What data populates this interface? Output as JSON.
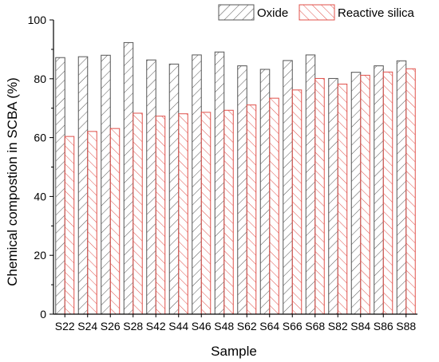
{
  "chart_data": {
    "type": "bar",
    "xlabel": "Sample",
    "ylabel": "Chemical compostion in SCBA (%)",
    "ylim": [
      0,
      100
    ],
    "yticks": [
      0,
      20,
      40,
      60,
      80,
      100
    ],
    "categories": [
      "S22",
      "S24",
      "S26",
      "S28",
      "S42",
      "S44",
      "S46",
      "S48",
      "S62",
      "S64",
      "S66",
      "S68",
      "S82",
      "S84",
      "S86",
      "S88"
    ],
    "series": [
      {
        "name": "Oxide",
        "color": "#555555",
        "hatch": "forward-diagonal",
        "values": [
          87.2,
          87.5,
          88.0,
          92.3,
          86.4,
          85.0,
          88.1,
          89.1,
          84.4,
          83.2,
          86.2,
          88.1,
          80.1,
          82.2,
          84.4,
          86.1
        ]
      },
      {
        "name": "Reactive silica",
        "color": "#e0504a",
        "hatch": "backward-diagonal",
        "values": [
          60.4,
          62.1,
          63.1,
          68.3,
          67.3,
          68.1,
          68.6,
          69.3,
          71.1,
          73.4,
          76.2,
          80.1,
          78.2,
          81.2,
          82.3,
          83.4
        ]
      }
    ],
    "legend_position": "top-right",
    "grid": false
  }
}
